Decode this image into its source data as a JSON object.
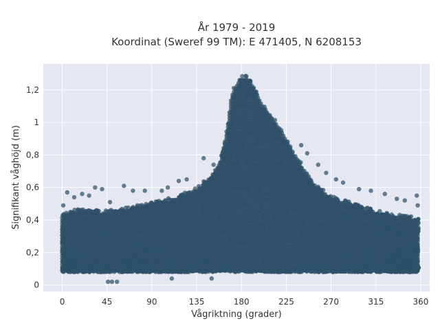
{
  "chart_data": {
    "type": "scatter",
    "title": "År 1979 - 2019",
    "subtitle": "Koordinat (Sweref 99 TM): E 471405, N 6208153",
    "xlabel": "Vågriktning (grader)",
    "ylabel": "Signifikant våghöjd (m)",
    "xlim": [
      -19,
      369
    ],
    "ylim": [
      -0.04,
      1.36
    ],
    "x_ticks": [
      0,
      45,
      90,
      135,
      180,
      225,
      270,
      315,
      360
    ],
    "x_tick_labels": [
      "0",
      "45",
      "90",
      "135",
      "180",
      "225",
      "270",
      "315",
      "360"
    ],
    "y_ticks": [
      0,
      0.2,
      0.4,
      0.6,
      0.8,
      1.0,
      1.2
    ],
    "y_tick_labels": [
      "0",
      "0,2",
      "0,4",
      "0,6",
      "0,8",
      "1",
      "1,2"
    ],
    "grid": true,
    "legend": "none",
    "colors": {
      "points": "#2f5168",
      "plot_bg": "#e5e8f0",
      "grid": "#ffffff"
    },
    "envelope": {
      "x": [
        0,
        10,
        20,
        30,
        45,
        60,
        75,
        90,
        105,
        120,
        135,
        150,
        160,
        165,
        170,
        175,
        180,
        185,
        190,
        195,
        200,
        210,
        220,
        225,
        235,
        245,
        255,
        265,
        270,
        285,
        300,
        315,
        330,
        345,
        358
      ],
      "upper": [
        0.44,
        0.46,
        0.47,
        0.47,
        0.46,
        0.47,
        0.49,
        0.51,
        0.53,
        0.56,
        0.6,
        0.68,
        0.8,
        0.95,
        1.18,
        1.25,
        1.29,
        1.29,
        1.25,
        1.19,
        1.13,
        1.05,
        0.96,
        0.9,
        0.8,
        0.7,
        0.62,
        0.57,
        0.55,
        0.52,
        0.49,
        0.46,
        0.44,
        0.43,
        0.41
      ],
      "lower": [
        0.08,
        0.08,
        0.08,
        0.08,
        0.08,
        0.08,
        0.08,
        0.08,
        0.08,
        0.08,
        0.08,
        0.08,
        0.08,
        0.08,
        0.08,
        0.08,
        0.08,
        0.08,
        0.08,
        0.08,
        0.08,
        0.08,
        0.08,
        0.08,
        0.08,
        0.08,
        0.08,
        0.08,
        0.08,
        0.08,
        0.08,
        0.08,
        0.08,
        0.08,
        0.08
      ]
    },
    "outliers": [
      {
        "x": 5,
        "y": 0.57
      },
      {
        "x": 12,
        "y": 0.54
      },
      {
        "x": 20,
        "y": 0.56
      },
      {
        "x": 27,
        "y": 0.55
      },
      {
        "x": 33,
        "y": 0.6
      },
      {
        "x": 40,
        "y": 0.59
      },
      {
        "x": 48,
        "y": 0.51
      },
      {
        "x": 62,
        "y": 0.61
      },
      {
        "x": 71,
        "y": 0.58
      },
      {
        "x": 83,
        "y": 0.58
      },
      {
        "x": 100,
        "y": 0.58
      },
      {
        "x": 106,
        "y": 0.6
      },
      {
        "x": 117,
        "y": 0.64
      },
      {
        "x": 125,
        "y": 0.65
      },
      {
        "x": 142,
        "y": 0.78
      },
      {
        "x": 152,
        "y": 0.74
      },
      {
        "x": 46,
        "y": 0.02
      },
      {
        "x": 50,
        "y": 0.02
      },
      {
        "x": 55,
        "y": 0.02
      },
      {
        "x": 110,
        "y": 0.04
      },
      {
        "x": 150,
        "y": 0.04
      },
      {
        "x": 240,
        "y": 0.86
      },
      {
        "x": 246,
        "y": 0.81
      },
      {
        "x": 257,
        "y": 0.74
      },
      {
        "x": 265,
        "y": 0.69
      },
      {
        "x": 275,
        "y": 0.65
      },
      {
        "x": 282,
        "y": 0.63
      },
      {
        "x": 298,
        "y": 0.59
      },
      {
        "x": 310,
        "y": 0.58
      },
      {
        "x": 324,
        "y": 0.56
      },
      {
        "x": 336,
        "y": 0.53
      },
      {
        "x": 344,
        "y": 0.52
      },
      {
        "x": 356,
        "y": 0.55
      },
      {
        "x": 1,
        "y": 0.49
      },
      {
        "x": 357,
        "y": 0.49
      }
    ]
  }
}
